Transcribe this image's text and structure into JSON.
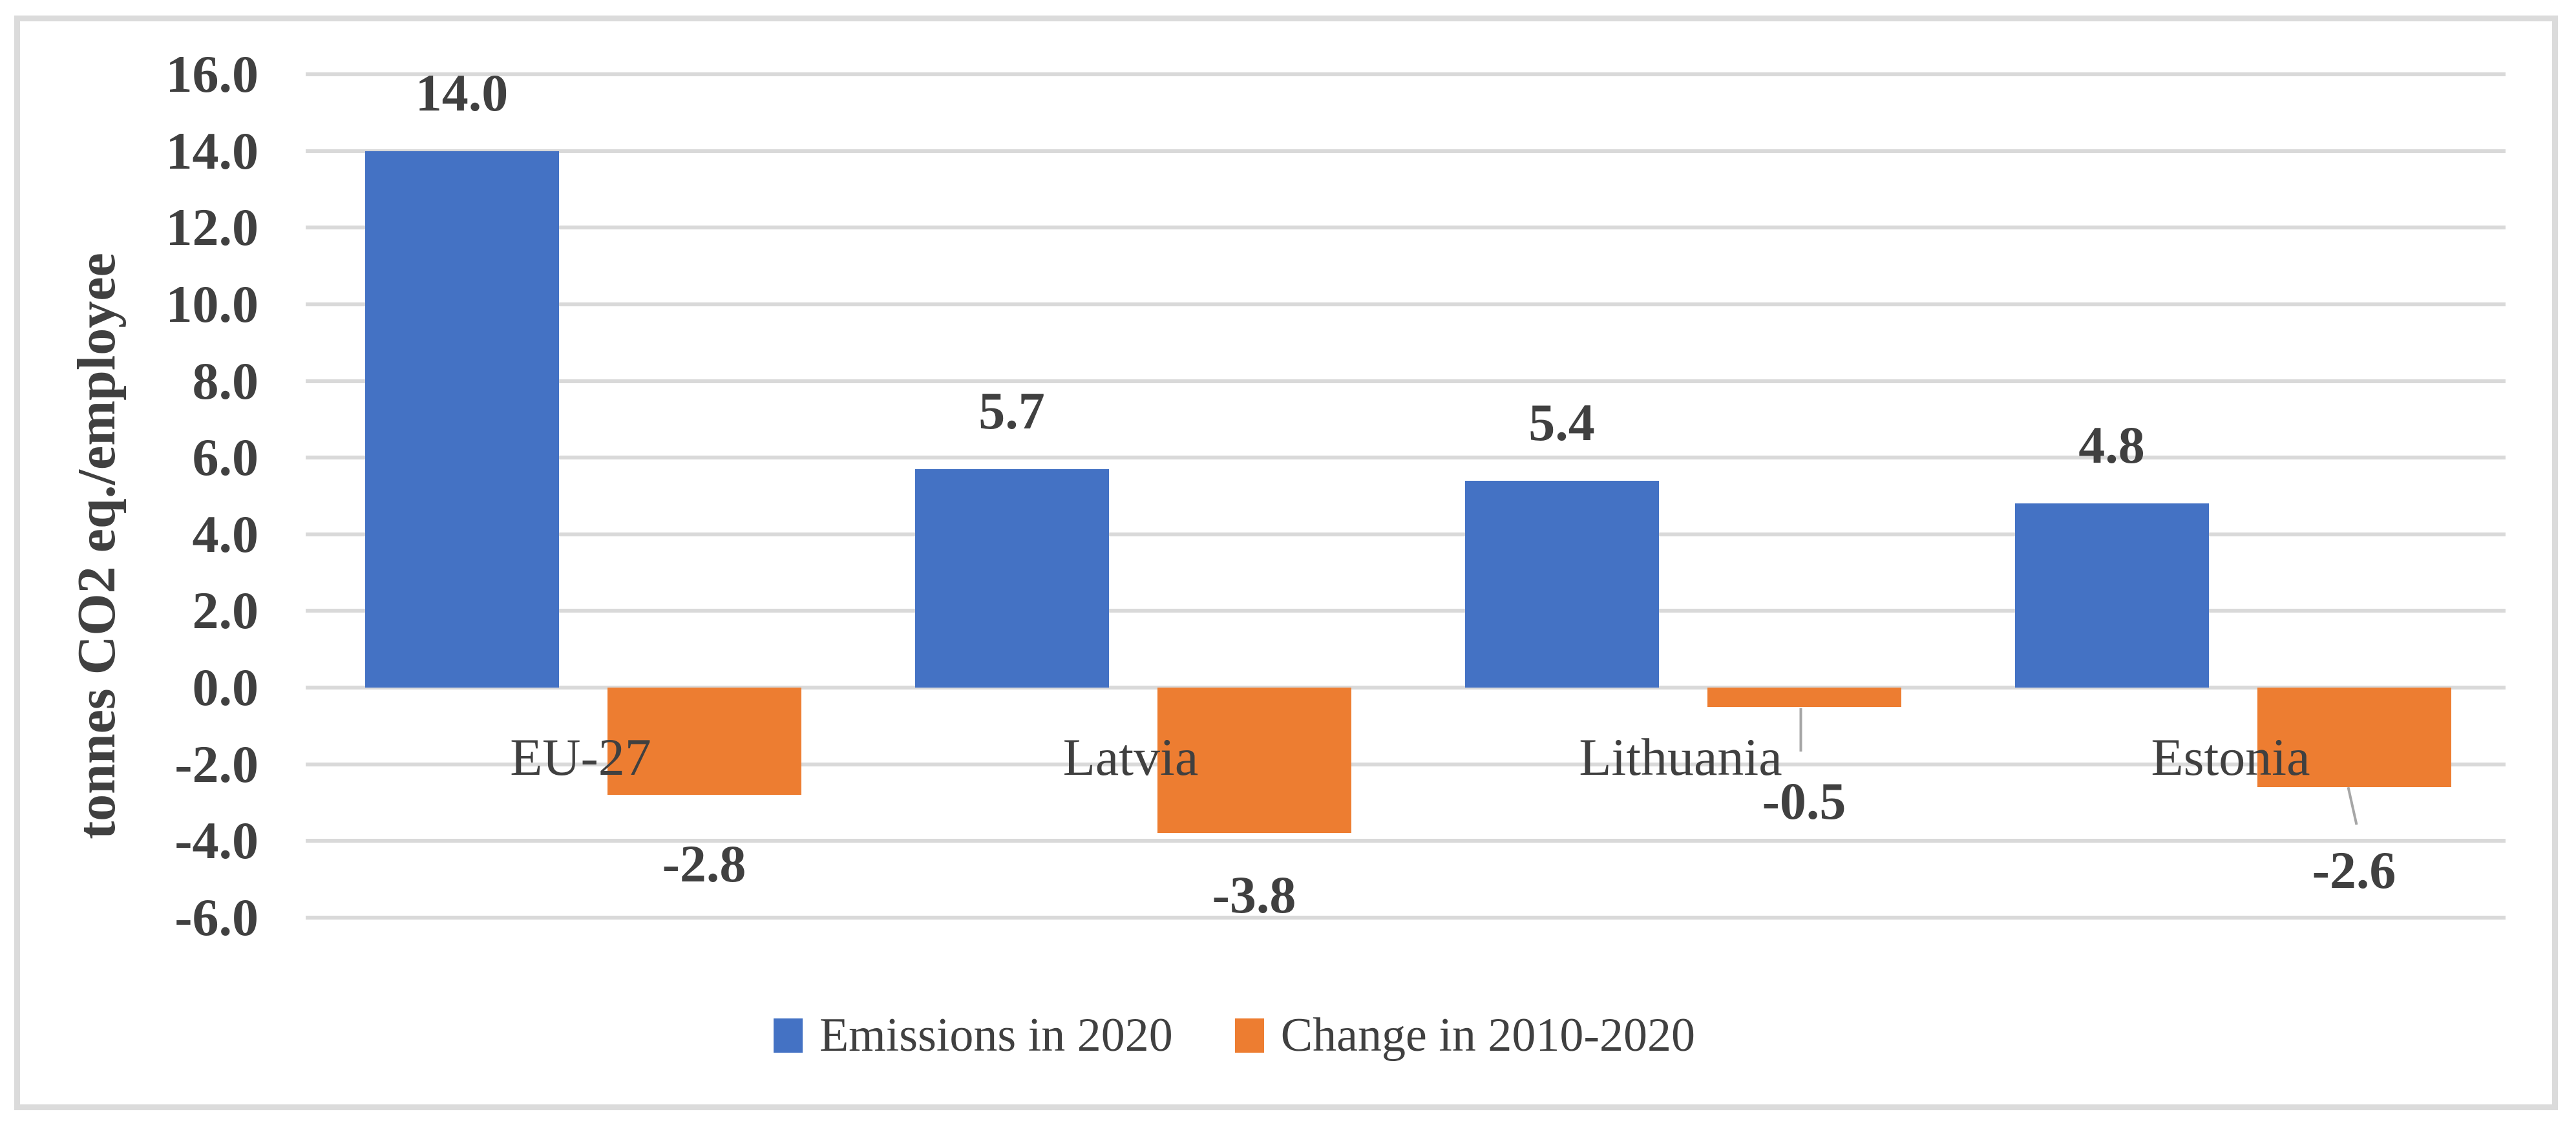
{
  "chart_data": {
    "type": "bar",
    "title": "",
    "categories": [
      "EU-27",
      "Latvia",
      "Lithuania",
      "Estonia"
    ],
    "series": [
      {
        "name": "Emissions in 2020",
        "color": "#4472C4",
        "values": [
          14.0,
          5.7,
          5.4,
          4.8
        ],
        "data_labels": [
          "14.0",
          "5.7",
          "5.4",
          "4.8"
        ]
      },
      {
        "name": "Change in 2010-2020",
        "color": "#ED7D31",
        "values": [
          -2.8,
          -3.8,
          -0.5,
          -2.6
        ],
        "data_labels": [
          "-2.8",
          "-3.8",
          "-0.5",
          "-2.6"
        ]
      }
    ],
    "xlabel": "",
    "ylabel": "tonnes CO2 eq./employee",
    "ylim": [
      -6.0,
      16.0
    ],
    "ytick_step": 2.0,
    "yticks": [
      16,
      14,
      12,
      10,
      8,
      6,
      4,
      2,
      0,
      -2,
      -4,
      -6
    ],
    "ytick_labels": [
      "16.0",
      "14.0",
      "12.0",
      "10.0",
      "8.0",
      "6.0",
      "4.0",
      "2.0",
      "0.0",
      "-2.0",
      "-4.0",
      "-6.0"
    ],
    "grid": true,
    "legend_position": "bottom",
    "colors": {
      "background": "#FFFFFF",
      "border": "#DBDBDB",
      "gridline": "#D9D9D9",
      "text": "#404040",
      "leader_line": "#A6A6A6"
    }
  }
}
